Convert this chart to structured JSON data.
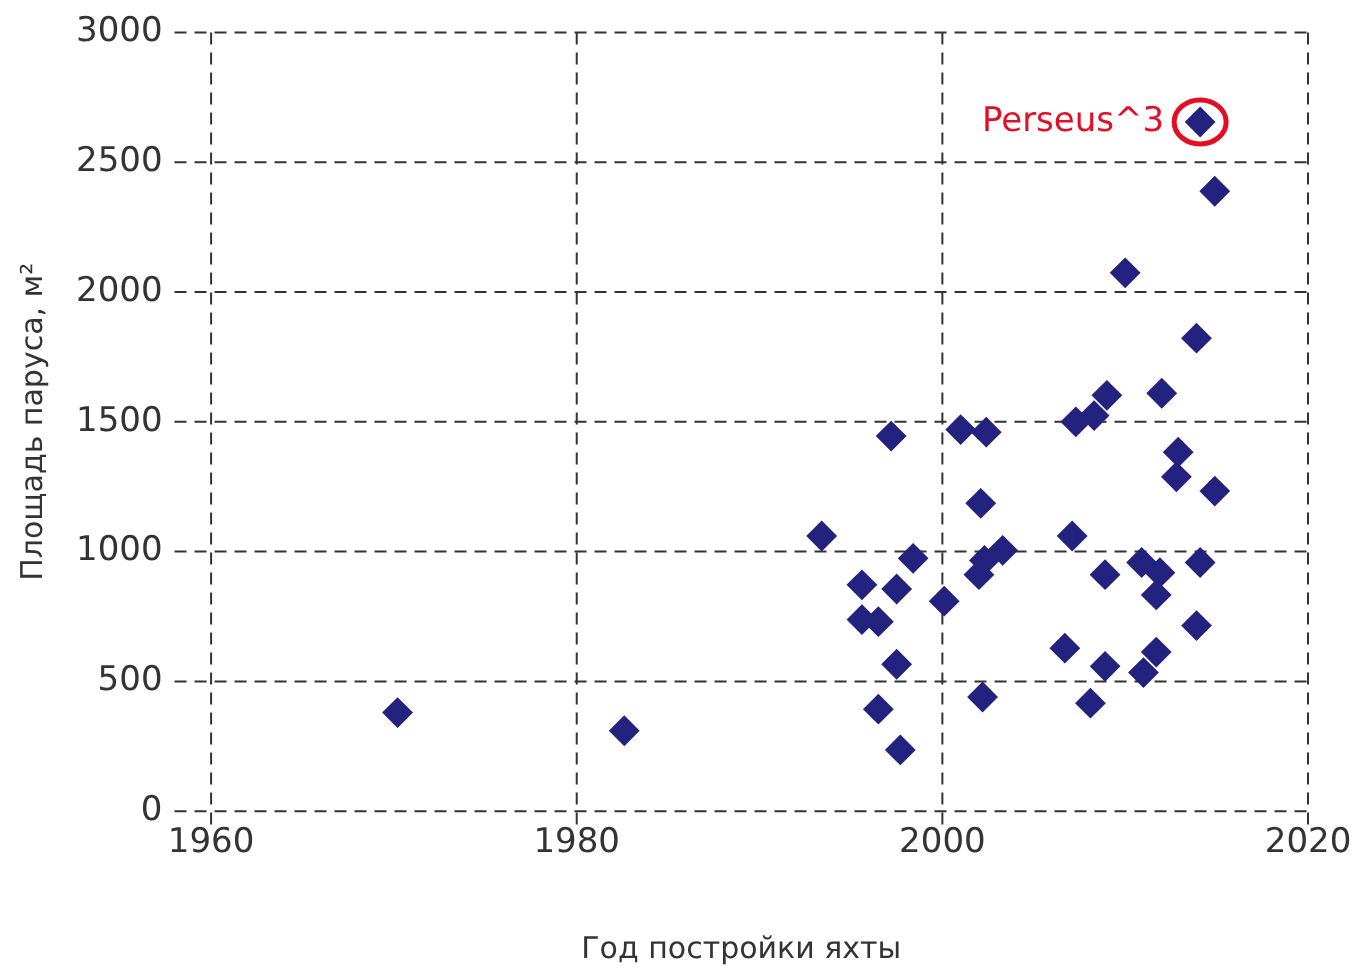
{
  "chart_data": {
    "type": "scatter",
    "xlabel": "Год постройки яхты",
    "ylabel": "Площадь паруса, м²",
    "xlim": [
      1958,
      2020
    ],
    "xticks": [
      1960,
      1980,
      2000,
      2020
    ],
    "ylim": [
      0,
      3000
    ],
    "yticks": [
      0,
      500,
      1000,
      1500,
      2000,
      2500,
      3000
    ],
    "grid": true,
    "legend": false,
    "marker": "diamond",
    "annotations": [
      {
        "text": "Perseus^3",
        "x": 2014.1,
        "y": 2655
      }
    ],
    "series": [
      {
        "color": "#23237f",
        "x": [
          1970.2,
          1982.6,
          1993.4,
          1995.6,
          1995.6,
          1996.5,
          1996.5,
          1997.2,
          1997.5,
          1997.5,
          1997.7,
          1998.4,
          2000.1,
          2001.0,
          2002.4,
          2002.1,
          2002.0,
          2002.3,
          2003.3,
          2002.2,
          2007.1,
          2006.7,
          2008.9,
          2008.9,
          2008.1,
          2010.9,
          2011.9,
          2011.7,
          2014.1,
          2013.9,
          2011.7,
          2011.0,
          2012.9,
          2012.8,
          2014.9,
          2007.3,
          2008.3,
          2009.0,
          2012.0,
          2014.1,
          2014.9,
          2010.0,
          2013.9
        ],
        "values": [
          380,
          310,
          1060,
          872,
          738,
          730,
          393,
          1445,
          856,
          566,
          236,
          974,
          809,
          1470,
          1460,
          1186,
          911,
          966,
          1005,
          440,
          1060,
          628,
          911,
          558,
          416,
          958,
          919,
          833,
          958,
          715,
          613,
          534,
          1383,
          1288,
          1233,
          1500,
          1524,
          1602,
          1610,
          2655,
          2388,
          2074,
          1822
        ]
      }
    ]
  }
}
